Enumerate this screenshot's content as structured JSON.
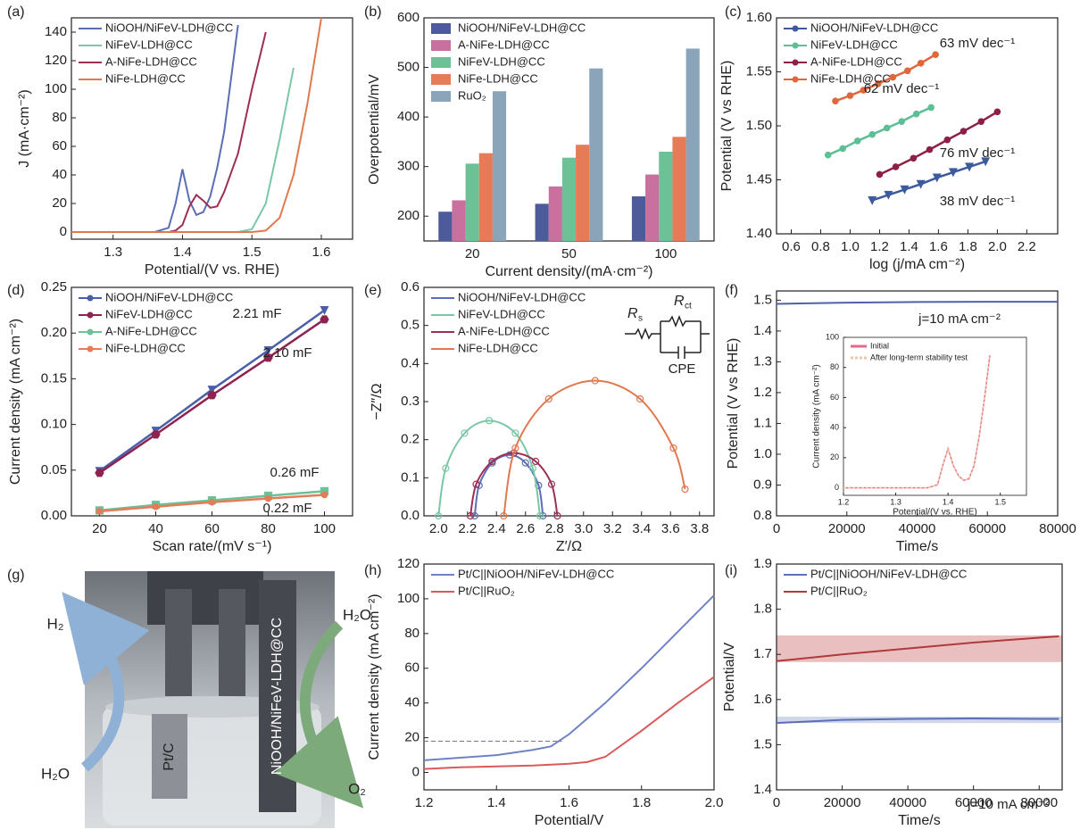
{
  "chart_data": [
    {
      "type": "line",
      "panel_label": "(a)",
      "xlabel": "Potential/(V vs. RHE)",
      "ylabel": "J (mA·cm⁻²)",
      "legend": "upper left",
      "xlim": [
        1.24,
        1.645
      ],
      "xticks": [
        1.3,
        1.4,
        1.5,
        1.6
      ],
      "ylim": [
        -5,
        150
      ],
      "yticks": [
        0,
        20,
        40,
        60,
        80,
        100,
        120,
        140
      ],
      "x": [
        1.24,
        1.3,
        1.36,
        1.38,
        1.39,
        1.4,
        1.41,
        1.42,
        1.43,
        1.44,
        1.45,
        1.46,
        1.48,
        1.5,
        1.52,
        1.54,
        1.56,
        1.58,
        1.6,
        1.62
      ],
      "series": [
        {
          "name": "NiOOH/NiFeV-LDH@CC",
          "color": "#5b6fb5",
          "values": [
            0,
            0,
            0,
            3,
            20,
            44,
            22,
            12,
            14,
            25,
            45,
            70,
            145,
            null,
            null,
            null,
            null,
            null,
            null,
            null
          ]
        },
        {
          "name": "NiFeV-LDH@CC",
          "color": "#7cc7a8",
          "values": [
            0,
            0,
            0,
            0,
            0,
            0,
            0,
            0,
            0,
            0,
            0,
            0,
            0,
            2,
            20,
            65,
            115,
            null,
            null,
            null
          ]
        },
        {
          "name": "A-NiFe-LDH@CC",
          "color": "#9c2f55",
          "values": [
            0,
            0,
            0,
            0,
            1,
            5,
            18,
            26,
            22,
            17,
            18,
            28,
            55,
            100,
            140,
            null,
            null,
            null,
            null,
            null
          ]
        },
        {
          "name": "NiFe-LDH@CC",
          "color": "#e0794f",
          "values": [
            0,
            0,
            0,
            0,
            0,
            0,
            0,
            0,
            0,
            0,
            0,
            0,
            0,
            0,
            1,
            10,
            40,
            90,
            150,
            null
          ]
        }
      ]
    },
    {
      "type": "bar",
      "panel_label": "(b)",
      "xlabel": "Current density/(mA·cm⁻²)",
      "ylabel": "Overpotential/mV",
      "legend": "upper left",
      "categories": [
        "20",
        "50",
        "100"
      ],
      "ylim": [
        150,
        600
      ],
      "yticks": [
        200,
        300,
        400,
        500,
        600
      ],
      "series": [
        {
          "name": "NiOOH/NiFeV-LDH@CC",
          "color": "#4d5b9a",
          "values": [
            209,
            225,
            240
          ]
        },
        {
          "name": "A-NiFe-LDH@CC",
          "color": "#c9709f",
          "values": [
            232,
            260,
            284
          ]
        },
        {
          "name": "NiFeV-LDH@CC",
          "color": "#6cc196",
          "values": [
            306,
            318,
            330
          ]
        },
        {
          "name": "NiFe-LDH@CC",
          "color": "#e57b57",
          "values": [
            327,
            344,
            360
          ]
        },
        {
          "name": "RuO₂",
          "color": "#8aa5ba",
          "values": [
            452,
            498,
            538
          ]
        }
      ]
    },
    {
      "type": "line",
      "panel_label": "(c)",
      "xlabel": "log (j/mA cm⁻²)",
      "ylabel": "Potential (V vs RHE)",
      "legend": "upper left",
      "xlim": [
        0.5,
        2.41
      ],
      "xticks": [
        0.6,
        0.8,
        {
          "value": 1,
          "label": "1.0"
        },
        1.2,
        1.4,
        1.6,
        1.8,
        {
          "value": 2,
          "label": "2.0"
        },
        2.2
      ],
      "ylim": [
        1.4,
        1.6
      ],
      "yticks": [
        {
          "value": 1.4,
          "label": "1.40"
        },
        1.45,
        {
          "value": 1.5,
          "label": "1.50"
        },
        1.55,
        {
          "value": 1.6,
          "label": "1.60"
        }
      ],
      "annotations": [
        "63 mV dec⁻¹",
        "62 mV dec⁻¹",
        "76 mV dec⁻¹",
        "38 mV dec⁻¹"
      ],
      "series": [
        {
          "name": "NiOOH/NiFeV-LDH@CC",
          "color": "#3d5a9e",
          "marker": "triangle",
          "x": [
            1.15,
            1.26,
            1.37,
            1.48,
            1.59,
            1.7,
            1.81,
            1.92
          ],
          "values": [
            1.431,
            1.436,
            1.441,
            1.446,
            1.452,
            1.457,
            1.462,
            1.467
          ]
        },
        {
          "name": "NiFeV-LDH@CC",
          "color": "#5cbf95",
          "marker": "circle",
          "x": [
            0.85,
            0.95,
            1.05,
            1.15,
            1.25,
            1.35,
            1.45,
            1.55
          ],
          "values": [
            1.473,
            1.479,
            1.486,
            1.492,
            1.498,
            1.504,
            1.511,
            1.517
          ]
        },
        {
          "name": "A-NiFe-LDH@CC",
          "color": "#8e1f48",
          "marker": "circle",
          "x": [
            1.2,
            1.31,
            1.43,
            1.54,
            1.66,
            1.77,
            1.89,
            2.0
          ],
          "values": [
            1.455,
            1.462,
            1.47,
            1.478,
            1.487,
            1.495,
            1.504,
            1.513
          ]
        },
        {
          "name": "NiFe-LDH@CC",
          "color": "#e0673b",
          "marker": "circle",
          "x": [
            0.9,
            1.0,
            1.09,
            1.19,
            1.29,
            1.39,
            1.48,
            1.58
          ],
          "values": [
            1.523,
            1.528,
            1.533,
            1.539,
            1.545,
            1.551,
            1.558,
            1.566
          ]
        }
      ]
    },
    {
      "type": "line",
      "panel_label": "(d)",
      "xlabel": "Scan rate/(mV s⁻¹)",
      "ylabel": "Current density (mA cm⁻²)",
      "legend": "upper left",
      "xlim": [
        10,
        110
      ],
      "xticks": [
        20,
        40,
        60,
        80,
        100
      ],
      "ylim": [
        0,
        0.25
      ],
      "yticks": [
        {
          "value": 0,
          "label": "0.00"
        },
        0.05,
        {
          "value": 0.1,
          "label": "0.10"
        },
        0.15,
        {
          "value": 0.2,
          "label": "0.20"
        },
        0.25
      ],
      "annotations": [
        "2.21 mF",
        "2.10 mF",
        "0.26 mF",
        "0.22 mF"
      ],
      "x": [
        20,
        40,
        60,
        80,
        100
      ],
      "series": [
        {
          "name": "NiOOH/NiFeV-LDH@CC",
          "color": "#4a5fa8",
          "marker": "triangle",
          "values": [
            0.049,
            0.093,
            0.138,
            0.181,
            0.225
          ]
        },
        {
          "name": "NiFeV-LDH@CC",
          "color": "#8e2350",
          "marker": "hexagon",
          "values": [
            0.047,
            0.089,
            0.132,
            0.173,
            0.215
          ]
        },
        {
          "name": "A-NiFe-LDH@CC",
          "color": "#6cc196",
          "marker": "square",
          "values": [
            0.006,
            0.012,
            0.017,
            0.022,
            0.027
          ]
        },
        {
          "name": "NiFe-LDH@CC",
          "color": "#e57b57",
          "marker": "circle",
          "values": [
            0.005,
            0.01,
            0.015,
            0.019,
            0.023
          ]
        }
      ]
    },
    {
      "type": "scatter",
      "panel_label": "(e)",
      "xlabel": "Z′/Ω",
      "ylabel": "−Z″/Ω",
      "legend": "upper left",
      "fit": true,
      "xlim": [
        1.9,
        3.9
      ],
      "xticks": [
        {
          "value": 2,
          "label": "2.0"
        },
        2.2,
        2.4,
        2.6,
        2.8,
        {
          "value": 3,
          "label": "3.0"
        },
        3.2,
        3.4,
        3.6,
        3.8
      ],
      "ylim": [
        0,
        0.6
      ],
      "yticks": [
        {
          "value": 0,
          "label": "0.0"
        },
        0.1,
        0.2,
        0.3,
        0.4,
        0.5,
        0.6
      ],
      "circuit_labels": [
        "R",
        "s",
        "R",
        "ct",
        "CPE"
      ],
      "series": [
        {
          "name": "NiOOH/NiFeV-LDH@CC",
          "color": "#5b6fb5",
          "x": [
            2.25,
            2.28,
            2.37,
            2.49,
            2.6,
            2.69,
            2.72
          ],
          "values": [
            0,
            0.08,
            0.139,
            0.16,
            0.139,
            0.08,
            0
          ]
        },
        {
          "name": "NiFeV-LDH@CC",
          "color": "#7cc7a8",
          "x": [
            2.0,
            2.05,
            2.18,
            2.35,
            2.53,
            2.65,
            2.7
          ],
          "values": [
            0,
            0.125,
            0.217,
            0.25,
            0.217,
            0.125,
            0
          ]
        },
        {
          "name": "A-NiFe-LDH@CC",
          "color": "#9c2f55",
          "x": [
            2.22,
            2.26,
            2.37,
            2.52,
            2.67,
            2.78,
            2.82
          ],
          "values": [
            0,
            0.083,
            0.143,
            0.165,
            0.143,
            0.083,
            0
          ]
        },
        {
          "name": "NiFe-LDH@CC",
          "color": "#e0794f",
          "x": [
            2.45,
            2.53,
            2.76,
            3.08,
            3.39,
            3.62,
            3.7
          ],
          "values": [
            0,
            0.178,
            0.307,
            0.355,
            0.307,
            0.178,
            0.07
          ]
        }
      ]
    },
    {
      "type": "line",
      "panel_label": "(f)",
      "xlabel": "Time/s",
      "ylabel": "Potential (V vs RHE)",
      "xlim": [
        0,
        80000
      ],
      "xticks": [
        0,
        20000,
        40000,
        60000,
        80000
      ],
      "ylim": [
        0.8,
        1.53
      ],
      "yticks": [
        0.8,
        0.9,
        {
          "value": 1,
          "label": "1.0"
        },
        1.1,
        1.2,
        1.3,
        1.4,
        1.5
      ],
      "annotations": [
        "j=10 mA cm⁻²"
      ],
      "x": [
        0,
        20000,
        40000,
        60000,
        80000
      ],
      "series": [
        {
          "name": null,
          "color": "#4f62a8",
          "values": [
            1.488,
            1.492,
            1.494,
            1.495,
            1.495
          ]
        }
      ]
    },
    {
      "type": "line",
      "xlabel": "Potential/(V vs. RHE)",
      "ylabel": "Current density (mA cm⁻²)",
      "legend": "upper left",
      "xlim": [
        1.2,
        1.55
      ],
      "xticks": [
        1.2,
        1.3,
        1.4,
        1.5
      ],
      "ylim": [
        -5,
        100
      ],
      "yticks": [
        0,
        20,
        40,
        60,
        80,
        100
      ],
      "x": [
        1.2,
        1.3,
        1.36,
        1.38,
        1.39,
        1.4,
        1.41,
        1.42,
        1.43,
        1.44,
        1.45,
        1.46,
        1.47,
        1.48
      ],
      "series": [
        {
          "name": "Initial",
          "color": "#e06b8f",
          "values": [
            0,
            0,
            0,
            2,
            15,
            26,
            15,
            8,
            5,
            6,
            15,
            35,
            60,
            88
          ]
        },
        {
          "name": "After long-term stability test",
          "color": "#f3c6a2",
          "dash": true,
          "values": [
            0,
            0,
            0,
            2,
            15,
            26,
            15,
            8,
            5,
            6,
            15,
            35,
            60,
            88
          ]
        }
      ]
    },
    {
      "type": "line",
      "panel_label": "(h)",
      "xlabel": "Potential/V",
      "ylabel": "Current density (mA cm⁻²)",
      "legend": "upper left",
      "xlim": [
        1.2,
        2.0
      ],
      "xticks": [
        1.2,
        1.4,
        1.6,
        1.8,
        {
          "value": 2,
          "label": "2.0"
        }
      ],
      "ylim": [
        -10,
        120
      ],
      "yticks": [
        0,
        20,
        40,
        60,
        80,
        100,
        120
      ],
      "reference_line": {
        "value": 18,
        "x_end": 1.58
      },
      "x": [
        1.2,
        1.3,
        1.4,
        1.5,
        1.55,
        1.6,
        1.65,
        1.7,
        1.8,
        1.9,
        2.0
      ],
      "series": [
        {
          "name": "Pt/C||NiOOH/NiFeV-LDH@CC",
          "color": "#6f82c4",
          "values": [
            7,
            8.5,
            10,
            13,
            15,
            22,
            31,
            40,
            60,
            81,
            102
          ]
        },
        {
          "name": "Pt/C||RuO₂",
          "color": "#d95a5a",
          "values": [
            2,
            3,
            3.5,
            4,
            4.5,
            5,
            6,
            9,
            24,
            40,
            55
          ]
        }
      ]
    },
    {
      "type": "line",
      "panel_label": "(i)",
      "xlabel": "Time/s",
      "ylabel": "Potential/V",
      "legend": "upper left",
      "xlim": [
        0,
        87000
      ],
      "xticks": [
        0,
        20000,
        40000,
        60000,
        80000
      ],
      "ylim": [
        1.4,
        1.9
      ],
      "yticks": [
        1.4,
        1.5,
        1.6,
        1.7,
        1.8,
        1.9
      ],
      "annotations": [
        "j=10 mA cm⁻²"
      ],
      "bands": [
        {
          "lower": 1.683,
          "upper": 1.742,
          "color": "#d98a8a"
        },
        {
          "lower": 1.548,
          "upper": 1.562,
          "color": "#aab6dd"
        }
      ],
      "x": [
        0,
        20000,
        40000,
        60000,
        80000,
        86000
      ],
      "series": [
        {
          "name": "Pt/C||NiOOH/NiFeV-LDH@CC",
          "color": "#5b6fb5",
          "values": [
            1.548,
            1.555,
            1.557,
            1.558,
            1.557,
            1.557
          ]
        },
        {
          "name": "Pt/C||RuO₂",
          "color": "#b03a3a",
          "values": [
            1.685,
            1.7,
            1.713,
            1.726,
            1.737,
            1.74
          ]
        }
      ]
    }
  ],
  "photo_panel": {
    "panel_label": "(g)",
    "labels": [
      "H₂",
      "H₂O",
      "Pt/C",
      "NiOOH/NiFeV-LDH@CC",
      "H₂O",
      "O₂"
    ]
  }
}
